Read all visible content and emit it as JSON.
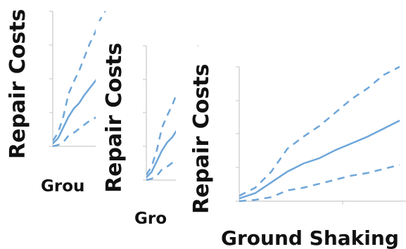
{
  "colors": {
    "series": "#6ea6d9",
    "axis": "#bdbdbd",
    "text": "#111111",
    "background": "#ffffff"
  },
  "chart_data": [
    {
      "type": "line",
      "xlabel": "Grou",
      "ylabel": "Repair Costs",
      "x": [
        0,
        1,
        2,
        3,
        4,
        5,
        6,
        7,
        8,
        9,
        10
      ],
      "series": [
        {
          "style": "dashed",
          "values": [
            0.4,
            1.0,
            2.2,
            3.9,
            4.8,
            5.6,
            6.6,
            7.6,
            8.4,
            9.4,
            10.0
          ]
        },
        {
          "style": "solid",
          "values": [
            0.2,
            0.6,
            1.4,
            2.2,
            2.8,
            3.2,
            3.8,
            4.3,
            4.8,
            5.4,
            6.0
          ]
        },
        {
          "style": "dashed",
          "values": [
            0.0,
            0.1,
            0.3,
            0.8,
            1.0,
            1.3,
            1.6,
            1.9,
            2.1,
            2.4,
            2.7
          ]
        }
      ],
      "xlim": [
        0,
        10
      ],
      "ylim": [
        0,
        10
      ],
      "grid": false
    },
    {
      "type": "line",
      "xlabel": "Gro",
      "ylabel": "Repair Costs",
      "x": [
        0,
        1,
        2,
        3,
        4,
        5,
        6,
        7,
        8,
        9,
        10
      ],
      "series": [
        {
          "style": "dashed",
          "values": [
            0.4,
            1.0,
            2.2,
            3.9,
            4.8,
            5.6,
            6.6,
            7.6,
            8.4,
            9.4,
            10.0
          ]
        },
        {
          "style": "solid",
          "values": [
            0.2,
            0.6,
            1.4,
            2.2,
            2.8,
            3.2,
            3.8,
            4.3,
            4.8,
            5.4,
            6.0
          ]
        },
        {
          "style": "dashed",
          "values": [
            0.0,
            0.1,
            0.3,
            0.8,
            1.0,
            1.3,
            1.6,
            1.9,
            2.1,
            2.4,
            2.7
          ]
        }
      ],
      "xlim": [
        0,
        10
      ],
      "ylim": [
        0,
        10
      ],
      "grid": false
    },
    {
      "type": "line",
      "xlabel": "Ground Shaking",
      "ylabel": "Repair Costs",
      "x": [
        0,
        1,
        2,
        3,
        4,
        5,
        6,
        7,
        8,
        9,
        10
      ],
      "series": [
        {
          "style": "dashed",
          "values": [
            0.4,
            1.0,
            2.2,
            3.9,
            4.8,
            5.6,
            6.6,
            7.6,
            8.4,
            9.4,
            10.0
          ]
        },
        {
          "style": "solid",
          "values": [
            0.2,
            0.6,
            1.4,
            2.2,
            2.8,
            3.2,
            3.8,
            4.3,
            4.8,
            5.4,
            6.0
          ]
        },
        {
          "style": "dashed",
          "values": [
            0.0,
            0.1,
            0.3,
            0.8,
            1.0,
            1.3,
            1.6,
            1.9,
            2.1,
            2.4,
            2.7
          ]
        }
      ],
      "xlim": [
        0,
        10
      ],
      "ylim": [
        0,
        10
      ],
      "grid": false
    }
  ]
}
